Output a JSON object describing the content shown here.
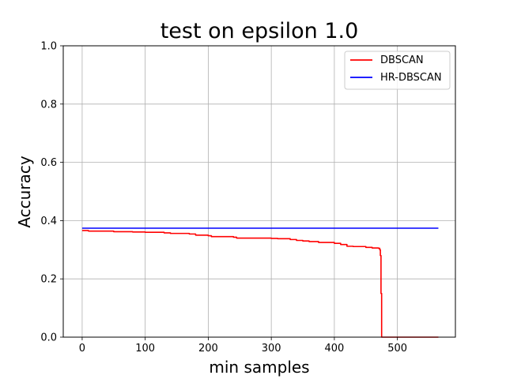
{
  "chart_data": {
    "type": "line",
    "title": "test on epsilon 1.0",
    "xlabel": "min samples",
    "ylabel": "Accuracy",
    "xlim": [
      -30,
      592
    ],
    "ylim": [
      0,
      1.0
    ],
    "xticks": [
      0,
      100,
      200,
      300,
      400,
      500
    ],
    "yticks": [
      0.0,
      0.2,
      0.4,
      0.6,
      0.8,
      1.0
    ],
    "xtick_labels": [
      "0",
      "100",
      "200",
      "300",
      "400",
      "500"
    ],
    "ytick_labels": [
      "0.0",
      "0.2",
      "0.4",
      "0.6",
      "0.8",
      "1.0"
    ],
    "grid": true,
    "legend_position": "top-right",
    "series": [
      {
        "name": "DBSCAN",
        "color": "#ff0000",
        "x": [
          0,
          10,
          20,
          50,
          80,
          100,
          130,
          140,
          170,
          180,
          200,
          205,
          240,
          245,
          300,
          310,
          330,
          340,
          350,
          360,
          375,
          400,
          410,
          420,
          430,
          450,
          460,
          470,
          472,
          473,
          474,
          475,
          500,
          530,
          565
        ],
        "y": [
          0.366,
          0.364,
          0.364,
          0.362,
          0.361,
          0.36,
          0.358,
          0.356,
          0.354,
          0.35,
          0.348,
          0.345,
          0.343,
          0.34,
          0.339,
          0.338,
          0.335,
          0.332,
          0.33,
          0.328,
          0.325,
          0.322,
          0.318,
          0.312,
          0.311,
          0.308,
          0.306,
          0.305,
          0.3,
          0.28,
          0.15,
          0.0,
          0.0,
          0.0,
          0.0
        ]
      },
      {
        "name": "HR-DBSCAN",
        "color": "#0000ff",
        "x": [
          0,
          565
        ],
        "y": [
          0.374,
          0.374
        ]
      }
    ]
  }
}
